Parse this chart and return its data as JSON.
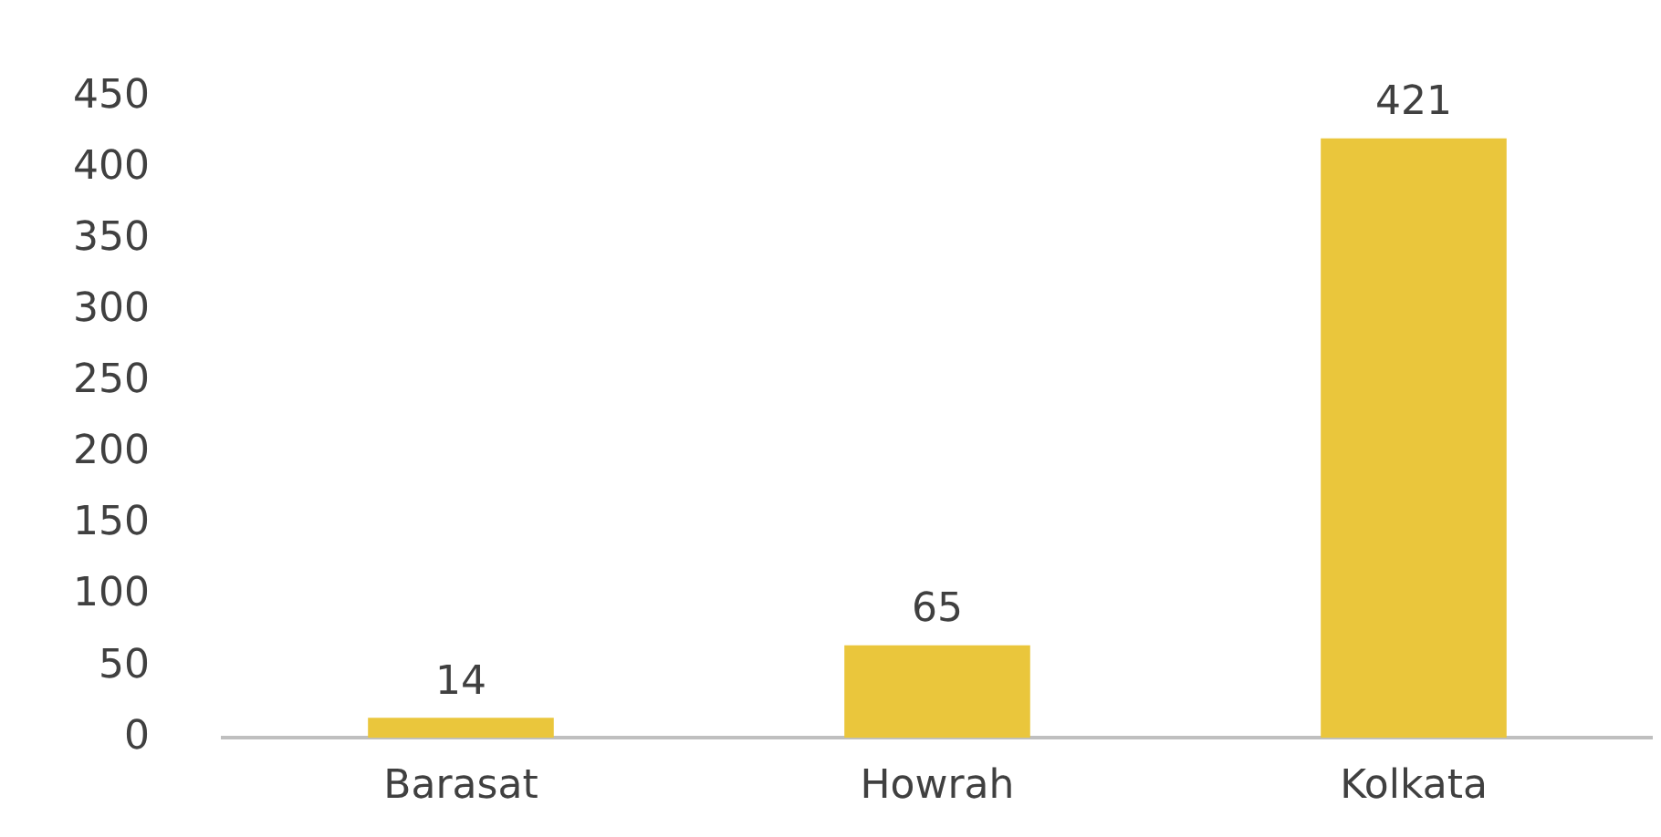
{
  "chart_data": {
    "type": "bar",
    "categories": [
      "Barasat",
      "Howrah",
      "Kolkata"
    ],
    "values": [
      14,
      65,
      421
    ],
    "color": "#eac63c",
    "ylim": [
      0,
      450
    ],
    "yticks": [
      0,
      50,
      100,
      150,
      200,
      250,
      300,
      350,
      400,
      450
    ],
    "grid": false,
    "legend": false,
    "data_labels": true
  }
}
